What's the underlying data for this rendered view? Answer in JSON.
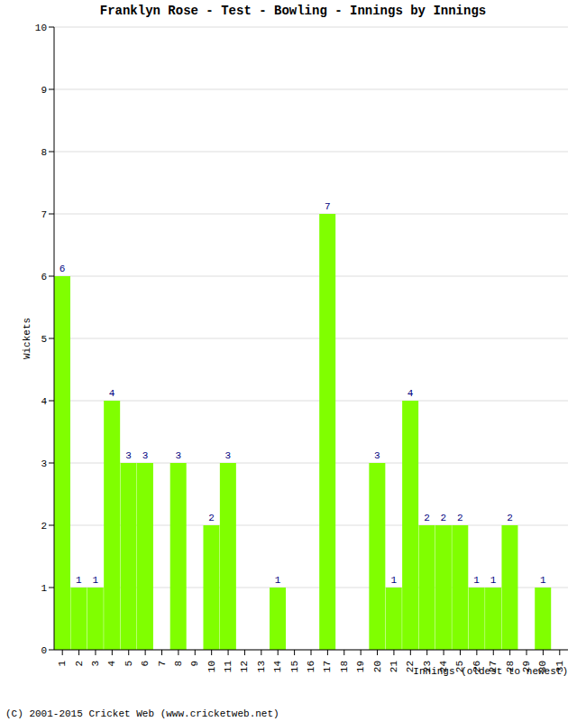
{
  "chart_data": {
    "type": "bar",
    "title": "Franklyn Rose - Test - Bowling - Innings by Innings",
    "x_label": "Innings (oldest to newest)",
    "y_label": "Wickets",
    "annotations": [
      "(C) 2001-2015 Cricket Web (www.cricketweb.net)"
    ],
    "categories": [
      "1",
      "2",
      "3",
      "4",
      "5",
      "6",
      "7",
      "8",
      "9",
      "10",
      "11",
      "12",
      "13",
      "14",
      "15",
      "16",
      "17",
      "18",
      "19",
      "20",
      "21",
      "22",
      "23",
      "24",
      "25",
      "26",
      "27",
      "28",
      "29",
      "30",
      "31"
    ],
    "values": [
      6,
      1,
      1,
      4,
      3,
      3,
      0,
      3,
      0,
      2,
      3,
      0,
      0,
      1,
      0,
      0,
      7,
      0,
      0,
      3,
      1,
      4,
      2,
      2,
      2,
      1,
      1,
      2,
      0,
      1,
      0
    ],
    "color": "#80ff00",
    "ylim": [
      0,
      10
    ],
    "yticks": [
      0,
      1,
      2,
      3,
      4,
      5,
      6,
      7,
      8,
      9,
      10
    ],
    "grid": true,
    "data_labels": true
  }
}
